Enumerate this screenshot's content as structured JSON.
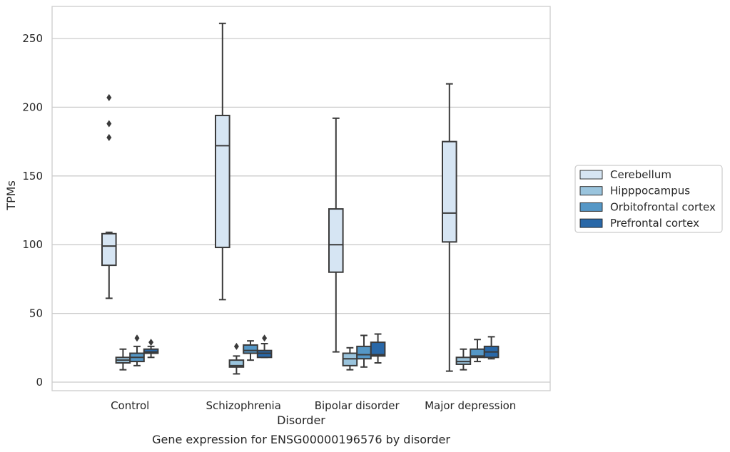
{
  "chart_data": {
    "type": "box",
    "xlabel": "Disorder",
    "ylabel": "TPMs",
    "caption": "Gene expression for ENSG00000196576 by disorder",
    "categories": [
      "Control",
      "Schizophrenia",
      "Bipolar disorder",
      "Major depression"
    ],
    "ylim": [
      -6,
      274
    ],
    "yticks": [
      "0",
      "50",
      "100",
      "150",
      "200",
      "250"
    ],
    "grid": "horizontal",
    "legend_position": "right",
    "series": [
      {
        "name": "Cerebellum",
        "color": "#d6e5f3",
        "boxes": [
          {
            "whislo": 61,
            "q1": 85,
            "med": 99,
            "q3": 108,
            "whishi": 109,
            "fliers": [
              178,
              188,
              207
            ]
          },
          {
            "whislo": 60,
            "q1": 98,
            "med": 172,
            "q3": 194,
            "whishi": 261,
            "fliers": []
          },
          {
            "whislo": 22,
            "q1": 80,
            "med": 100,
            "q3": 126,
            "whishi": 192,
            "fliers": []
          },
          {
            "whislo": 8,
            "q1": 102,
            "med": 123,
            "q3": 175,
            "whishi": 217,
            "fliers": []
          }
        ]
      },
      {
        "name": "Hipppocampus",
        "color": "#9ac4dd",
        "boxes": [
          {
            "whislo": 9,
            "q1": 14,
            "med": 16,
            "q3": 18,
            "whishi": 24,
            "fliers": []
          },
          {
            "whislo": 6,
            "q1": 11,
            "med": 12,
            "q3": 16,
            "whishi": 19,
            "fliers": [
              26
            ]
          },
          {
            "whislo": 9,
            "q1": 12,
            "med": 17,
            "q3": 21,
            "whishi": 25,
            "fliers": []
          },
          {
            "whislo": 9,
            "q1": 13,
            "med": 15,
            "q3": 18,
            "whishi": 24,
            "fliers": []
          }
        ]
      },
      {
        "name": "Orbitofrontal cortex",
        "color": "#5597c6",
        "boxes": [
          {
            "whislo": 12,
            "q1": 15,
            "med": 18,
            "q3": 21,
            "whishi": 26,
            "fliers": [
              32
            ]
          },
          {
            "whislo": 16,
            "q1": 21,
            "med": 23,
            "q3": 27,
            "whishi": 30,
            "fliers": []
          },
          {
            "whislo": 11,
            "q1": 17,
            "med": 20,
            "q3": 26,
            "whishi": 34,
            "fliers": []
          },
          {
            "whislo": 15,
            "q1": 18,
            "med": 19,
            "q3": 24,
            "whishi": 31,
            "fliers": []
          }
        ]
      },
      {
        "name": "Prefrontal cortex",
        "color": "#2968a8",
        "boxes": [
          {
            "whislo": 18,
            "q1": 21,
            "med": 22,
            "q3": 24,
            "whishi": 26,
            "fliers": [
              29
            ]
          },
          {
            "whislo": 18,
            "q1": 18,
            "med": 21,
            "q3": 23,
            "whishi": 28,
            "fliers": [
              32
            ]
          },
          {
            "whislo": 14,
            "q1": 19,
            "med": 20,
            "q3": 29,
            "whishi": 35,
            "fliers": []
          },
          {
            "whislo": 17,
            "q1": 18,
            "med": 22,
            "q3": 26,
            "whishi": 33,
            "fliers": []
          }
        ]
      }
    ]
  }
}
